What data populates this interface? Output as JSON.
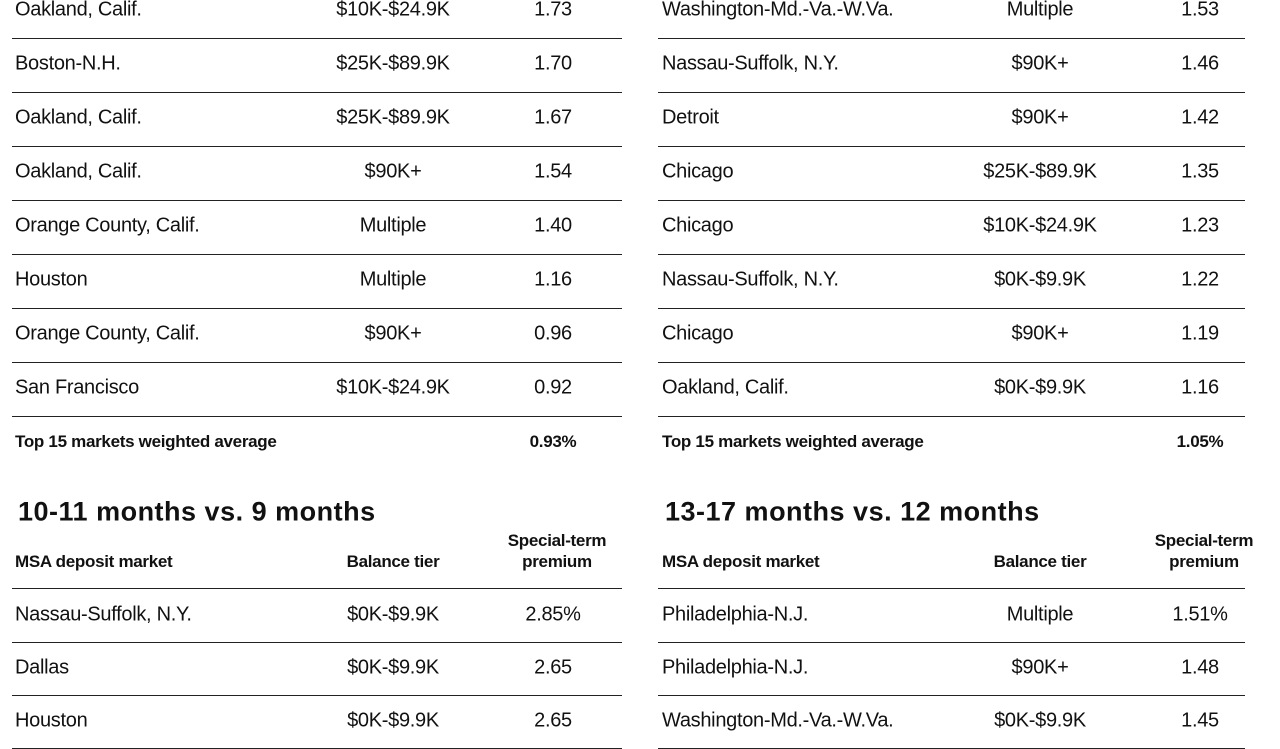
{
  "top_left": {
    "rows": [
      [
        "Oakland, Calif.",
        "$10K-$24.9K",
        "1.73"
      ],
      [
        "Boston-N.H.",
        "$25K-$89.9K",
        "1.70"
      ],
      [
        "Oakland, Calif.",
        "$25K-$89.9K",
        "1.67"
      ],
      [
        "Oakland, Calif.",
        "$90K+",
        "1.54"
      ],
      [
        "Orange County, Calif.",
        "Multiple",
        "1.40"
      ],
      [
        "Houston",
        "Multiple",
        "1.16"
      ],
      [
        "Orange County, Calif.",
        "$90K+",
        "0.96"
      ],
      [
        "San Francisco",
        "$10K-$24.9K",
        "0.92"
      ]
    ],
    "summary": {
      "label": "Top 15 markets weighted average",
      "value": "0.93%"
    }
  },
  "top_right": {
    "rows": [
      [
        "Washington-Md.-Va.-W.Va.",
        "Multiple",
        "1.53"
      ],
      [
        "Nassau-Suffolk, N.Y.",
        "$90K+",
        "1.46"
      ],
      [
        "Detroit",
        "$90K+",
        "1.42"
      ],
      [
        "Chicago",
        "$25K-$89.9K",
        "1.35"
      ],
      [
        "Chicago",
        "$10K-$24.9K",
        "1.23"
      ],
      [
        "Nassau-Suffolk, N.Y.",
        "$0K-$9.9K",
        "1.22"
      ],
      [
        "Chicago",
        "$90K+",
        "1.19"
      ],
      [
        "Oakland, Calif.",
        "$0K-$9.9K",
        "1.16"
      ]
    ],
    "summary": {
      "label": "Top 15 markets weighted average",
      "value": "1.05%"
    }
  },
  "bottom_left": {
    "title": "10-11 months vs. 9 months",
    "headers": [
      "MSA deposit market",
      "Balance tier",
      "Special-term premium"
    ],
    "rows": [
      [
        "Nassau-Suffolk, N.Y.",
        "$0K-$9.9K",
        "2.85%"
      ],
      [
        "Dallas",
        "$0K-$9.9K",
        "2.65"
      ],
      [
        "Houston",
        "$0K-$9.9K",
        "2.65"
      ]
    ]
  },
  "bottom_right": {
    "title": "13-17 months vs. 12 months",
    "headers": [
      "MSA deposit market",
      "Balance tier",
      "Special-term premium"
    ],
    "rows": [
      [
        "Philadelphia-N.J.",
        "Multiple",
        "1.51%"
      ],
      [
        "Philadelphia-N.J.",
        "$90K+",
        "1.48"
      ],
      [
        "Washington-Md.-Va.-W.Va.",
        "$0K-$9.9K",
        "1.45"
      ]
    ]
  }
}
